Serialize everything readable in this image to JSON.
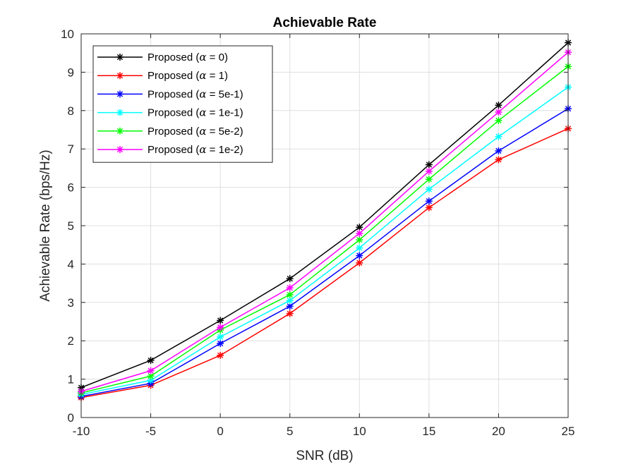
{
  "chart_data": {
    "type": "line",
    "title": "Achievable Rate",
    "xlabel": "SNR (dB)",
    "ylabel": "Achievable Rate (bps/Hz)",
    "xlim": [
      -10,
      25
    ],
    "ylim": [
      0,
      10
    ],
    "xticks": [
      -10,
      -5,
      0,
      5,
      10,
      15,
      20,
      25
    ],
    "yticks": [
      0,
      1,
      2,
      3,
      4,
      5,
      6,
      7,
      8,
      9,
      10
    ],
    "grid": true,
    "legend_position": "top-left",
    "x": [
      -10,
      -5,
      0,
      5,
      10,
      15,
      20,
      25
    ],
    "series": [
      {
        "name": "Proposed (α = 0)",
        "legend_prefix": "Proposed (",
        "legend_symbol": "α",
        "legend_suffix": " = 0)",
        "color": "#000000",
        "values": [
          0.78,
          1.49,
          2.53,
          3.62,
          4.96,
          6.59,
          8.14,
          9.77
        ]
      },
      {
        "name": "Proposed (α = 1)",
        "legend_prefix": "Proposed (",
        "legend_symbol": "α",
        "legend_suffix": " = 1)",
        "color": "#ff0000",
        "values": [
          0.52,
          0.84,
          1.62,
          2.71,
          4.03,
          5.47,
          6.72,
          7.53
        ]
      },
      {
        "name": "Proposed (α = 5e-1)",
        "legend_prefix": "Proposed (",
        "legend_symbol": "α",
        "legend_suffix": " = 5e-1)",
        "color": "#0000ff",
        "values": [
          0.55,
          0.89,
          1.93,
          2.9,
          4.22,
          5.64,
          6.95,
          8.05
        ]
      },
      {
        "name": "Proposed (α = 1e-1)",
        "legend_prefix": "Proposed (",
        "legend_symbol": "α",
        "legend_suffix": " = 1e-1)",
        "color": "#00ffff",
        "values": [
          0.6,
          0.97,
          2.1,
          3.05,
          4.42,
          5.95,
          7.32,
          8.61
        ]
      },
      {
        "name": "Proposed (α = 5e-2)",
        "legend_prefix": "Proposed (",
        "legend_symbol": "α",
        "legend_suffix": " = 5e-2)",
        "color": "#00ff00",
        "values": [
          0.64,
          1.08,
          2.28,
          3.2,
          4.63,
          6.21,
          7.74,
          9.15
        ]
      },
      {
        "name": "Proposed (α = 1e-2)",
        "legend_prefix": "Proposed (",
        "legend_symbol": "α",
        "legend_suffix": " = 1e-2)",
        "color": "#ff00ff",
        "values": [
          0.68,
          1.22,
          2.35,
          3.38,
          4.8,
          6.42,
          7.96,
          9.52
        ]
      }
    ]
  }
}
